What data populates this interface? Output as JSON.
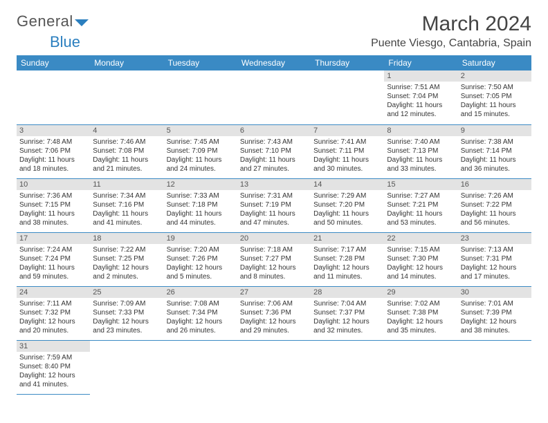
{
  "logo": {
    "text1": "General",
    "text2": "Blue"
  },
  "header": {
    "month": "March 2024",
    "location": "Puente Viesgo, Cantabria, Spain"
  },
  "colors": {
    "header_bg": "#3a8ac4",
    "header_fg": "#ffffff",
    "daynum_bg": "#e3e3e3",
    "border": "#3a8ac4",
    "text": "#333333",
    "logo_gray": "#555555",
    "logo_blue": "#2b7fbf"
  },
  "weekdays": [
    "Sunday",
    "Monday",
    "Tuesday",
    "Wednesday",
    "Thursday",
    "Friday",
    "Saturday"
  ],
  "cells": [
    [
      null,
      null,
      null,
      null,
      null,
      {
        "n": "1",
        "sr": "Sunrise: 7:51 AM",
        "ss": "Sunset: 7:04 PM",
        "dl1": "Daylight: 11 hours",
        "dl2": "and 12 minutes."
      },
      {
        "n": "2",
        "sr": "Sunrise: 7:50 AM",
        "ss": "Sunset: 7:05 PM",
        "dl1": "Daylight: 11 hours",
        "dl2": "and 15 minutes."
      }
    ],
    [
      {
        "n": "3",
        "sr": "Sunrise: 7:48 AM",
        "ss": "Sunset: 7:06 PM",
        "dl1": "Daylight: 11 hours",
        "dl2": "and 18 minutes."
      },
      {
        "n": "4",
        "sr": "Sunrise: 7:46 AM",
        "ss": "Sunset: 7:08 PM",
        "dl1": "Daylight: 11 hours",
        "dl2": "and 21 minutes."
      },
      {
        "n": "5",
        "sr": "Sunrise: 7:45 AM",
        "ss": "Sunset: 7:09 PM",
        "dl1": "Daylight: 11 hours",
        "dl2": "and 24 minutes."
      },
      {
        "n": "6",
        "sr": "Sunrise: 7:43 AM",
        "ss": "Sunset: 7:10 PM",
        "dl1": "Daylight: 11 hours",
        "dl2": "and 27 minutes."
      },
      {
        "n": "7",
        "sr": "Sunrise: 7:41 AM",
        "ss": "Sunset: 7:11 PM",
        "dl1": "Daylight: 11 hours",
        "dl2": "and 30 minutes."
      },
      {
        "n": "8",
        "sr": "Sunrise: 7:40 AM",
        "ss": "Sunset: 7:13 PM",
        "dl1": "Daylight: 11 hours",
        "dl2": "and 33 minutes."
      },
      {
        "n": "9",
        "sr": "Sunrise: 7:38 AM",
        "ss": "Sunset: 7:14 PM",
        "dl1": "Daylight: 11 hours",
        "dl2": "and 36 minutes."
      }
    ],
    [
      {
        "n": "10",
        "sr": "Sunrise: 7:36 AM",
        "ss": "Sunset: 7:15 PM",
        "dl1": "Daylight: 11 hours",
        "dl2": "and 38 minutes."
      },
      {
        "n": "11",
        "sr": "Sunrise: 7:34 AM",
        "ss": "Sunset: 7:16 PM",
        "dl1": "Daylight: 11 hours",
        "dl2": "and 41 minutes."
      },
      {
        "n": "12",
        "sr": "Sunrise: 7:33 AM",
        "ss": "Sunset: 7:18 PM",
        "dl1": "Daylight: 11 hours",
        "dl2": "and 44 minutes."
      },
      {
        "n": "13",
        "sr": "Sunrise: 7:31 AM",
        "ss": "Sunset: 7:19 PM",
        "dl1": "Daylight: 11 hours",
        "dl2": "and 47 minutes."
      },
      {
        "n": "14",
        "sr": "Sunrise: 7:29 AM",
        "ss": "Sunset: 7:20 PM",
        "dl1": "Daylight: 11 hours",
        "dl2": "and 50 minutes."
      },
      {
        "n": "15",
        "sr": "Sunrise: 7:27 AM",
        "ss": "Sunset: 7:21 PM",
        "dl1": "Daylight: 11 hours",
        "dl2": "and 53 minutes."
      },
      {
        "n": "16",
        "sr": "Sunrise: 7:26 AM",
        "ss": "Sunset: 7:22 PM",
        "dl1": "Daylight: 11 hours",
        "dl2": "and 56 minutes."
      }
    ],
    [
      {
        "n": "17",
        "sr": "Sunrise: 7:24 AM",
        "ss": "Sunset: 7:24 PM",
        "dl1": "Daylight: 11 hours",
        "dl2": "and 59 minutes."
      },
      {
        "n": "18",
        "sr": "Sunrise: 7:22 AM",
        "ss": "Sunset: 7:25 PM",
        "dl1": "Daylight: 12 hours",
        "dl2": "and 2 minutes."
      },
      {
        "n": "19",
        "sr": "Sunrise: 7:20 AM",
        "ss": "Sunset: 7:26 PM",
        "dl1": "Daylight: 12 hours",
        "dl2": "and 5 minutes."
      },
      {
        "n": "20",
        "sr": "Sunrise: 7:18 AM",
        "ss": "Sunset: 7:27 PM",
        "dl1": "Daylight: 12 hours",
        "dl2": "and 8 minutes."
      },
      {
        "n": "21",
        "sr": "Sunrise: 7:17 AM",
        "ss": "Sunset: 7:28 PM",
        "dl1": "Daylight: 12 hours",
        "dl2": "and 11 minutes."
      },
      {
        "n": "22",
        "sr": "Sunrise: 7:15 AM",
        "ss": "Sunset: 7:30 PM",
        "dl1": "Daylight: 12 hours",
        "dl2": "and 14 minutes."
      },
      {
        "n": "23",
        "sr": "Sunrise: 7:13 AM",
        "ss": "Sunset: 7:31 PM",
        "dl1": "Daylight: 12 hours",
        "dl2": "and 17 minutes."
      }
    ],
    [
      {
        "n": "24",
        "sr": "Sunrise: 7:11 AM",
        "ss": "Sunset: 7:32 PM",
        "dl1": "Daylight: 12 hours",
        "dl2": "and 20 minutes."
      },
      {
        "n": "25",
        "sr": "Sunrise: 7:09 AM",
        "ss": "Sunset: 7:33 PM",
        "dl1": "Daylight: 12 hours",
        "dl2": "and 23 minutes."
      },
      {
        "n": "26",
        "sr": "Sunrise: 7:08 AM",
        "ss": "Sunset: 7:34 PM",
        "dl1": "Daylight: 12 hours",
        "dl2": "and 26 minutes."
      },
      {
        "n": "27",
        "sr": "Sunrise: 7:06 AM",
        "ss": "Sunset: 7:36 PM",
        "dl1": "Daylight: 12 hours",
        "dl2": "and 29 minutes."
      },
      {
        "n": "28",
        "sr": "Sunrise: 7:04 AM",
        "ss": "Sunset: 7:37 PM",
        "dl1": "Daylight: 12 hours",
        "dl2": "and 32 minutes."
      },
      {
        "n": "29",
        "sr": "Sunrise: 7:02 AM",
        "ss": "Sunset: 7:38 PM",
        "dl1": "Daylight: 12 hours",
        "dl2": "and 35 minutes."
      },
      {
        "n": "30",
        "sr": "Sunrise: 7:01 AM",
        "ss": "Sunset: 7:39 PM",
        "dl1": "Daylight: 12 hours",
        "dl2": "and 38 minutes."
      }
    ],
    [
      {
        "n": "31",
        "sr": "Sunrise: 7:59 AM",
        "ss": "Sunset: 8:40 PM",
        "dl1": "Daylight: 12 hours",
        "dl2": "and 41 minutes."
      },
      null,
      null,
      null,
      null,
      null,
      null
    ]
  ]
}
